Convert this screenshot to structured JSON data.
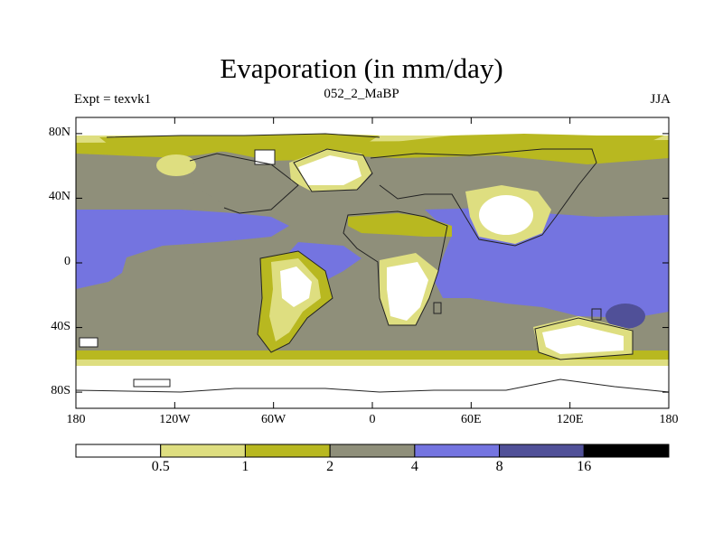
{
  "title": "Evaporation (in mm/day)",
  "experiment": "Expt = texvk1",
  "run_label": "052_2_MaBP",
  "season": "JJA",
  "map": {
    "projection": "equirectangular",
    "lat_range": [
      -90,
      90
    ],
    "lon_range": [
      -180,
      180
    ],
    "lat_ticks": [
      {
        "value": 80,
        "label": "80N"
      },
      {
        "value": 40,
        "label": "40N"
      },
      {
        "value": 0,
        "label": "0"
      },
      {
        "value": -40,
        "label": "40S"
      },
      {
        "value": -80,
        "label": "80S"
      }
    ],
    "lon_ticks": [
      {
        "value": -180,
        "label": "180"
      },
      {
        "value": -120,
        "label": "120W"
      },
      {
        "value": -60,
        "label": "60W"
      },
      {
        "value": 0,
        "label": "0"
      },
      {
        "value": 60,
        "label": "60E"
      },
      {
        "value": 120,
        "label": "120E"
      },
      {
        "value": 180,
        "label": "180"
      }
    ]
  },
  "colorbar": {
    "levels": [
      "0.5",
      "1",
      "2",
      "4",
      "8",
      "16"
    ],
    "colors": [
      "#ffffff",
      "#dede80",
      "#b8b820",
      "#8f8f7a",
      "#7474e0",
      "#505098",
      "#000000"
    ]
  }
}
